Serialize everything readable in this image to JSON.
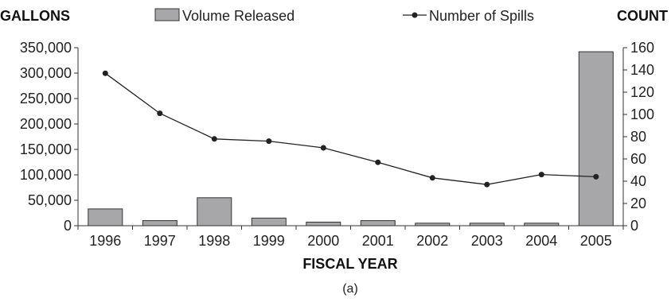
{
  "chart_data": {
    "type": "bar",
    "categories": [
      "1996",
      "1997",
      "1998",
      "1999",
      "2000",
      "2001",
      "2002",
      "2003",
      "2004",
      "2005"
    ],
    "series": [
      {
        "name": "Volume Released",
        "kind": "bar",
        "axis": "left",
        "color": "#a7a7aa",
        "values": [
          33000,
          10000,
          55000,
          15000,
          7000,
          10000,
          5000,
          5000,
          5000,
          342000
        ]
      },
      {
        "name": "Number of Spills",
        "kind": "line",
        "axis": "right",
        "color": "#222222",
        "values": [
          137,
          101,
          78,
          76,
          70,
          57,
          43,
          37,
          46,
          44
        ]
      }
    ],
    "left_axis": {
      "label": "GALLONS",
      "ylim": [
        0,
        350000
      ],
      "ticks": [
        0,
        50000,
        100000,
        150000,
        200000,
        250000,
        300000,
        350000
      ],
      "tick_labels": [
        "0",
        "50,000",
        "100,000",
        "150,000",
        "200,000",
        "250,000",
        "300,000",
        "350,000"
      ]
    },
    "right_axis": {
      "label": "COUNT",
      "ylim": [
        0,
        160
      ],
      "ticks": [
        0,
        20,
        40,
        60,
        80,
        100,
        120,
        140,
        160
      ],
      "tick_labels": [
        "0",
        "20",
        "40",
        "60",
        "80",
        "100",
        "120",
        "140",
        "160"
      ]
    },
    "xlabel": "FISCAL YEAR",
    "caption": "(a)",
    "legend_placement": "top",
    "grid": false
  }
}
